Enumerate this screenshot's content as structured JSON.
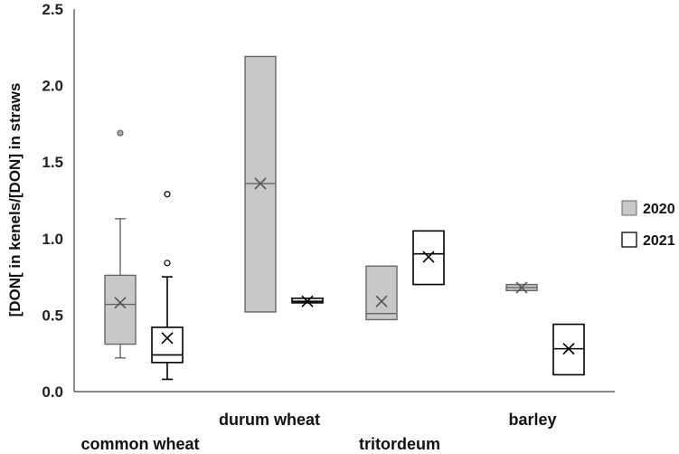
{
  "chart_data": {
    "type": "box",
    "ylabel": "[DON[ in kenels/[DON] in straws",
    "ylim": [
      0,
      2.5
    ],
    "yticks": [
      "0.0",
      "0.5",
      "1.0",
      "1.5",
      "2.0",
      "2.5"
    ],
    "categories": [
      "common wheat",
      "durum wheat",
      "tritordeum",
      "barley"
    ],
    "series": [
      {
        "name": "2020",
        "fill": "#c8c8c8",
        "stroke": "#666666",
        "boxes": [
          {
            "min": 0.22,
            "q1": 0.31,
            "median": 0.57,
            "q3": 0.76,
            "max": 1.13,
            "mean": 0.58,
            "outliers": [
              1.69
            ]
          },
          {
            "min": 0.52,
            "q1": 0.52,
            "median": 1.36,
            "q3": 2.19,
            "max": 2.19,
            "mean": 1.36,
            "outliers": []
          },
          {
            "min": 0.47,
            "q1": 0.47,
            "median": 0.51,
            "q3": 0.82,
            "max": 0.82,
            "mean": 0.59,
            "outliers": []
          },
          {
            "min": 0.66,
            "q1": 0.66,
            "median": 0.68,
            "q3": 0.7,
            "max": 0.7,
            "mean": 0.68,
            "outliers": []
          }
        ]
      },
      {
        "name": "2021",
        "fill": "#ffffff",
        "stroke": "#000000",
        "boxes": [
          {
            "min": 0.08,
            "q1": 0.19,
            "median": 0.24,
            "q3": 0.42,
            "max": 0.75,
            "mean": 0.35,
            "outliers": [
              0.84,
              1.29
            ]
          },
          {
            "min": 0.58,
            "q1": 0.58,
            "median": 0.59,
            "q3": 0.61,
            "max": 0.61,
            "mean": 0.59,
            "outliers": []
          },
          {
            "min": 0.7,
            "q1": 0.7,
            "median": 0.9,
            "q3": 1.05,
            "max": 1.05,
            "mean": 0.88,
            "outliers": []
          },
          {
            "min": 0.11,
            "q1": 0.11,
            "median": 0.28,
            "q3": 0.44,
            "max": 0.44,
            "mean": 0.28,
            "outliers": []
          }
        ]
      }
    ],
    "legend_position": "right"
  }
}
